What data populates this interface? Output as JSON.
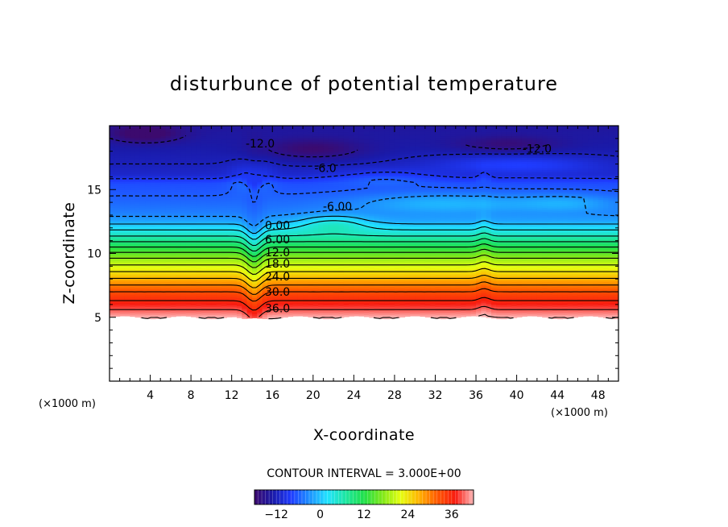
{
  "chart_data": {
    "type": "heatmap",
    "subtype": "filled-contour",
    "title": "disturbunce of potential temperature",
    "xlabel": "X-coordinate",
    "ylabel": "Z-coordinate",
    "x_unit": "(×1000 m)",
    "y_unit": "(×1000 m)",
    "xlim": [
      0,
      50
    ],
    "ylim": [
      0,
      20
    ],
    "x_ticks": [
      4,
      8,
      12,
      16,
      20,
      24,
      28,
      32,
      36,
      40,
      44,
      48
    ],
    "y_ticks": [
      5,
      10,
      15
    ],
    "field_bottom_z": 5,
    "contour_interval_text": "CONTOUR INTERVAL = 3.000E+00",
    "contour_interval": 3,
    "contour_labels": [
      {
        "text": "-12.0",
        "x": 14.8,
        "z": 18.6
      },
      {
        "text": "-12.0",
        "x": 42.0,
        "z": 18.2
      },
      {
        "text": "-6.0",
        "x": 21.2,
        "z": 16.7
      },
      {
        "text": "-6.00",
        "x": 22.4,
        "z": 13.7
      },
      {
        "text": "0.00",
        "x": 16.5,
        "z": 12.2
      },
      {
        "text": "6.00",
        "x": 16.5,
        "z": 11.1
      },
      {
        "text": "12.0",
        "x": 16.5,
        "z": 10.1
      },
      {
        "text": "18.0",
        "x": 16.5,
        "z": 9.2
      },
      {
        "text": "24.0",
        "x": 16.5,
        "z": 8.2
      },
      {
        "text": "30.0",
        "x": 16.5,
        "z": 7.0
      },
      {
        "text": "36.0",
        "x": 16.5,
        "z": 5.7
      }
    ],
    "profile_z": [
      5.0,
      5.6,
      6.3,
      7.0,
      7.7,
      8.4,
      9.1,
      9.8,
      10.5,
      11.2,
      12.0,
      12.6,
      13.2,
      13.8,
      14.5,
      15.5,
      16.2,
      17.0,
      18.5,
      20.0
    ],
    "profile_value": [
      42,
      39,
      36,
      33,
      29,
      25,
      21,
      17,
      12,
      7,
      2,
      -2,
      -4,
      -5,
      -6,
      -7,
      -11,
      -12,
      -13,
      -14
    ],
    "colorbar": {
      "range": [
        -18,
        42
      ],
      "ticks": [
        -12,
        0,
        12,
        24,
        36
      ],
      "tick_labels": [
        "−12",
        "0",
        "12",
        "24",
        "36"
      ]
    },
    "colors": {
      "stops": [
        "#3c0a6e",
        "#1a1aa8",
        "#1f3cff",
        "#1e90ff",
        "#21e3ff",
        "#1ee6a0",
        "#20e04a",
        "#7fe81a",
        "#e6ff12",
        "#ffb400",
        "#ff5a00",
        "#f81b10",
        "#ffb8b8"
      ],
      "background": "#ffffff"
    }
  }
}
